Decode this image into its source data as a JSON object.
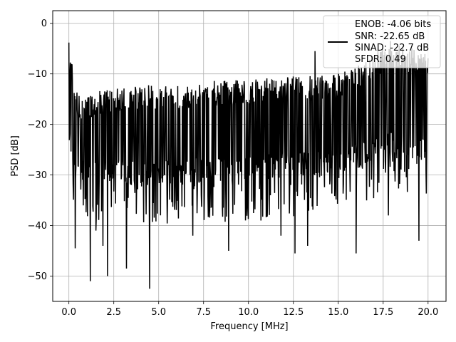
{
  "chart_data": {
    "type": "line",
    "title": "",
    "xlabel": "Frequency [MHz]",
    "ylabel": "PSD [dB]",
    "xlim": [
      -0.9,
      21.0
    ],
    "ylim": [
      -55,
      2.5
    ],
    "grid": true,
    "legend_position": "top-right",
    "xticks": [
      0.0,
      2.5,
      5.0,
      7.5,
      10.0,
      12.5,
      15.0,
      17.5,
      20.0
    ],
    "xtick_labels": [
      "0.0",
      "2.5",
      "5.0",
      "7.5",
      "10.0",
      "12.5",
      "15.0",
      "17.5",
      "20.0"
    ],
    "yticks": [
      0,
      -10,
      -20,
      -30,
      -40,
      -50
    ],
    "ytick_labels": [
      "0",
      "−10",
      "−20",
      "−30",
      "−40",
      "−50"
    ],
    "series": [
      {
        "color": "#000000",
        "x_range": [
          0.0,
          20.0
        ],
        "n_points": 1024,
        "trend_x": [
          0.0,
          0.05,
          0.5,
          2.5,
          5.0,
          7.5,
          10.0,
          12.5,
          15.0,
          16.0,
          17.0,
          18.0,
          19.0,
          20.0
        ],
        "trend_upper": [
          -4,
          -5,
          -14,
          -13,
          -12,
          -11.5,
          -11,
          -10.5,
          -10,
          -8,
          -6,
          -4,
          -5,
          -6
        ],
        "trend_center": [
          -15,
          -15,
          -22,
          -22,
          -21.5,
          -21,
          -20.5,
          -20,
          -19.5,
          -18,
          -16,
          -15,
          -16,
          -18
        ],
        "trend_lower": [
          -25,
          -25,
          -32,
          -32,
          -32,
          -31.5,
          -31,
          -30.5,
          -30,
          -29,
          -27,
          -26,
          -27,
          -28
        ],
        "deep_nulls": [
          {
            "x": 0.35,
            "y": -44.5
          },
          {
            "x": 1.2,
            "y": -51
          },
          {
            "x": 1.5,
            "y": -41
          },
          {
            "x": 1.9,
            "y": -44
          },
          {
            "x": 2.15,
            "y": -50
          },
          {
            "x": 3.2,
            "y": -48.5
          },
          {
            "x": 4.5,
            "y": -52.5
          },
          {
            "x": 6.9,
            "y": -42
          },
          {
            "x": 8.9,
            "y": -45
          },
          {
            "x": 10.7,
            "y": -39
          },
          {
            "x": 11.8,
            "y": -42
          },
          {
            "x": 12.6,
            "y": -45.5
          },
          {
            "x": 13.3,
            "y": -44
          },
          {
            "x": 16.0,
            "y": -45.5
          },
          {
            "x": 17.8,
            "y": -38
          },
          {
            "x": 19.5,
            "y": -43
          }
        ],
        "peaks": [
          {
            "x": 0.0,
            "y": -3.8
          },
          {
            "x": 13.7,
            "y": -5.5
          },
          {
            "x": 17.2,
            "y": -5.2
          },
          {
            "x": 17.9,
            "y": -3.5
          },
          {
            "x": 18.6,
            "y": -4.5
          },
          {
            "x": 19.1,
            "y": -5
          }
        ]
      }
    ],
    "legend": {
      "entries": [
        "ENOB: -4.06 bits",
        "SNR: -22.65 dB",
        "SINAD: -22.7 dB",
        "SFDR: 0.49"
      ]
    }
  }
}
